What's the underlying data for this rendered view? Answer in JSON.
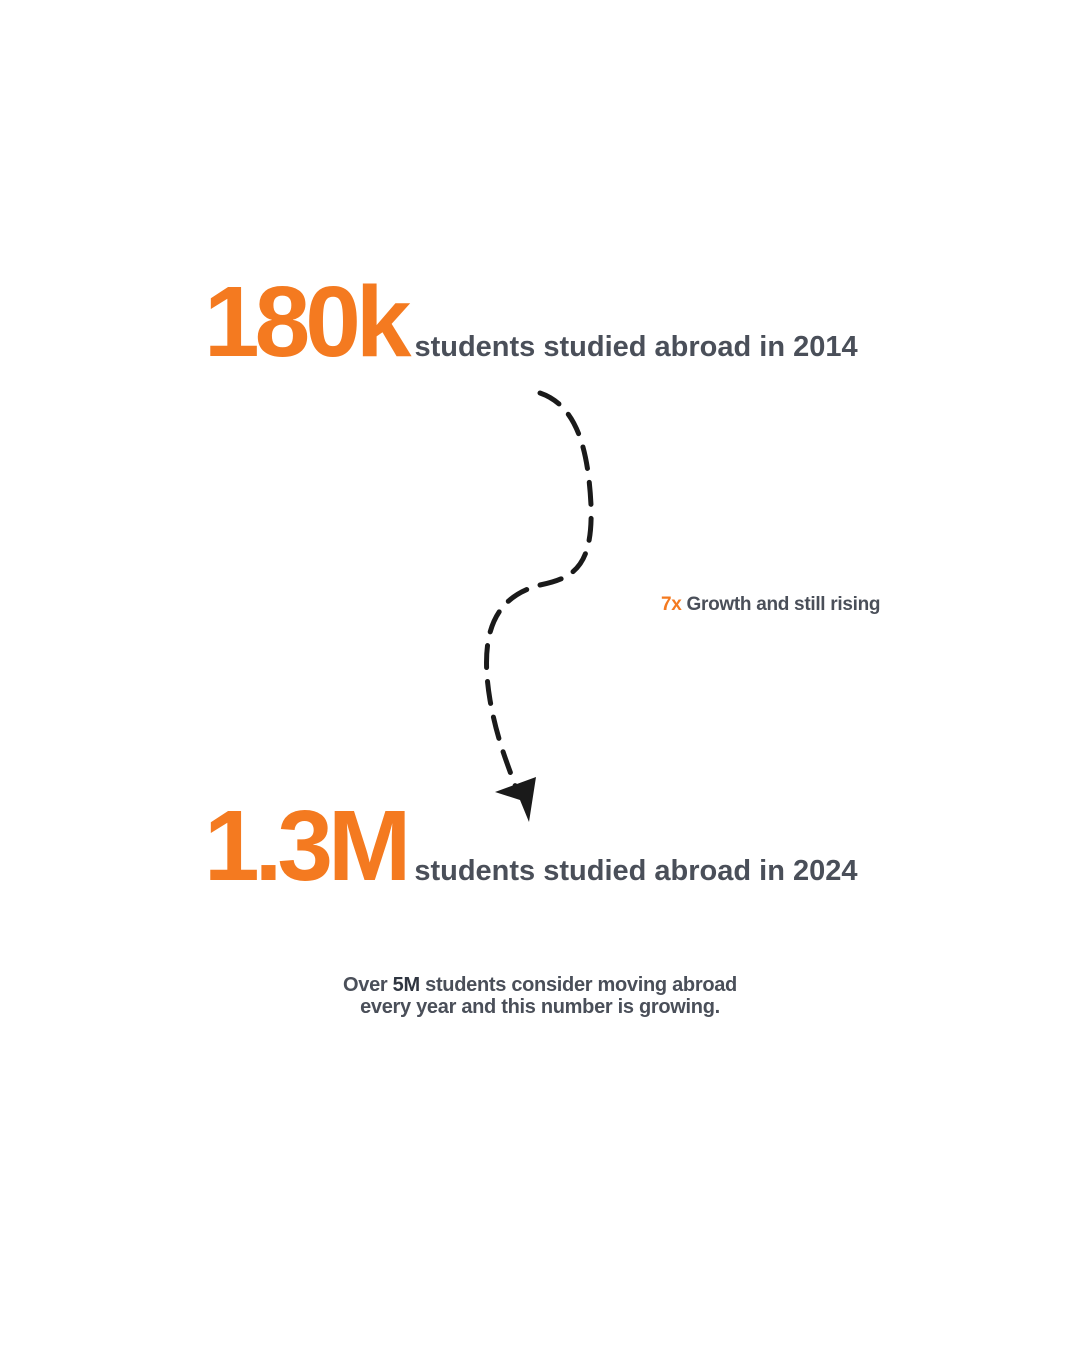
{
  "stat_2014": {
    "value": "180k",
    "caption": "students studied abroad in 2014"
  },
  "stat_2024": {
    "value": "1.3M",
    "caption": "students studied abroad in 2024"
  },
  "growth": {
    "multiplier": "7x",
    "text": "Growth and still rising"
  },
  "footer": {
    "prefix": "Over ",
    "highlight": "5M",
    "line1_rest": " students consider moving abroad",
    "line2": "every year and this number is growing."
  },
  "colors": {
    "accent": "#f47a20",
    "text": "#4a4f59",
    "arrow": "#1a1a1a",
    "background": "#ffffff"
  },
  "icons": {
    "connector": "dashed-curved-arrow-icon"
  }
}
